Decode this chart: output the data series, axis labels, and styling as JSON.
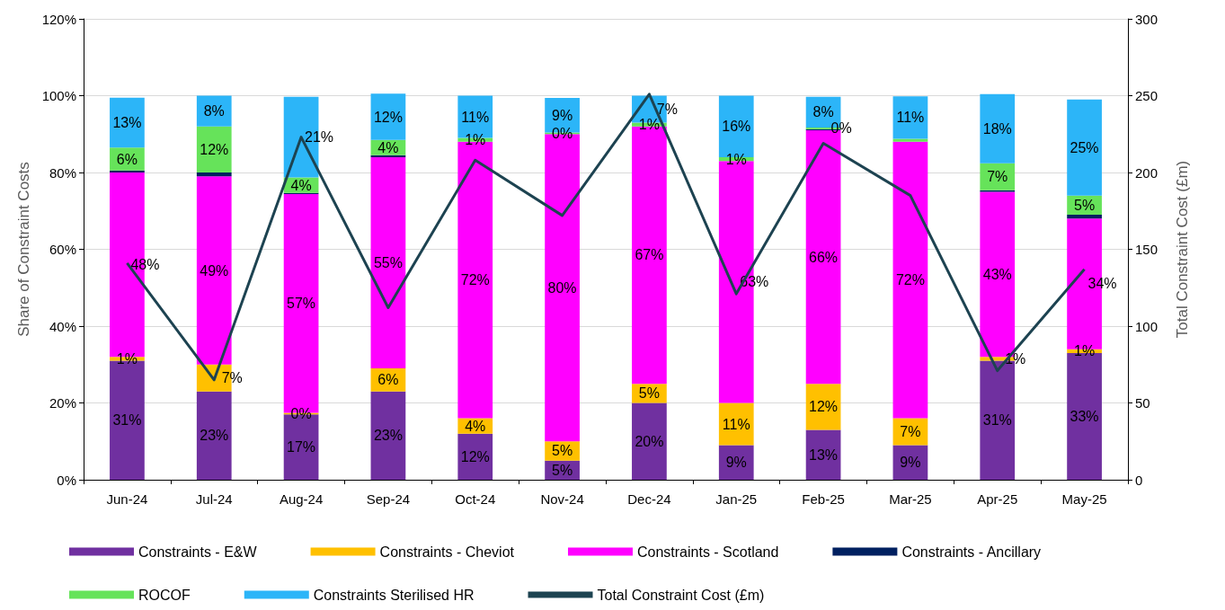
{
  "chart_data": {
    "type": "bar",
    "stacked": true,
    "ylabel": "Share of Constraint Costs",
    "y2label": "Total Constraint Cost (£m)",
    "categories": [
      "Jun-24",
      "Jul-24",
      "Aug-24",
      "Sep-24",
      "Oct-24",
      "Nov-24",
      "Dec-24",
      "Jan-25",
      "Feb-25",
      "Mar-25",
      "Apr-25",
      "May-25"
    ],
    "series": [
      {
        "name": "Constraints - E&W",
        "color": "#7030a0",
        "values": [
          31,
          23,
          17,
          23,
          12,
          5,
          20,
          9,
          13,
          9,
          31,
          33
        ],
        "value_labels": [
          "31%",
          "23%",
          "17%",
          "23%",
          "12%",
          "5%",
          "20%",
          "9%",
          "13%",
          "9%",
          "31%",
          "33%"
        ]
      },
      {
        "name": "Constraints - Cheviot",
        "color": "#ffc000",
        "values": [
          1,
          7,
          0.4,
          6,
          4,
          5,
          5,
          11,
          12,
          7,
          1,
          1
        ],
        "value_labels": [
          "1%",
          "7%",
          "0%",
          "6%",
          "4%",
          "5%",
          "5%",
          "11%",
          "12%",
          "7%",
          "1%",
          "1%"
        ]
      },
      {
        "name": "Constraints - Scotland",
        "color": "#ff00ff",
        "values": [
          48,
          49,
          57,
          55,
          72,
          80,
          67,
          63,
          66,
          72,
          43,
          34
        ],
        "value_labels": [
          "48%",
          "49%",
          "57%",
          "55%",
          "72%",
          "80%",
          "67%",
          "63%",
          "66%",
          "72%",
          "43%",
          "34%"
        ]
      },
      {
        "name": "Constraints - Ancillary",
        "color": "#002060",
        "values": [
          0.5,
          1,
          0.3,
          0.5,
          0,
          0,
          0,
          0,
          0.3,
          0,
          0.4,
          1
        ]
      },
      {
        "name": "ROCOF",
        "color": "#66e35a",
        "values": [
          6,
          12,
          4,
          4,
          1,
          0.4,
          1,
          1,
          0.4,
          0.8,
          7,
          5
        ],
        "value_labels": [
          "6%",
          "12%",
          "4%",
          "4%",
          "1%",
          "0%",
          "1%",
          "1%",
          "0%",
          null,
          "7%",
          "5%"
        ]
      },
      {
        "name": "Constraints Sterilised HR",
        "color": "#2cb5f8",
        "values": [
          13,
          8,
          21,
          12,
          11,
          9,
          7,
          16,
          8,
          11,
          18,
          25
        ],
        "value_labels": [
          "13%",
          "8%",
          "21%",
          "12%",
          "11%",
          "9%",
          "7%",
          "16%",
          "8%",
          "11%",
          "18%",
          "25%"
        ]
      },
      {
        "name": "Total Constraint Cost (£m)",
        "type": "line",
        "axis": "y2",
        "color": "#1d4351",
        "values": [
          141,
          65,
          223,
          112,
          208,
          172,
          251,
          121,
          219,
          185,
          71,
          137
        ]
      }
    ],
    "ylim": [
      0,
      120
    ],
    "yticks": [
      {
        "value": 0,
        "label": "0%"
      },
      {
        "value": 20,
        "label": "20%"
      },
      {
        "value": 40,
        "label": "40%"
      },
      {
        "value": 60,
        "label": "60%"
      },
      {
        "value": 80,
        "label": "80%"
      },
      {
        "value": 100,
        "label": "100%"
      },
      {
        "value": 120,
        "label": "120%"
      }
    ],
    "y2lim": [
      0,
      300
    ],
    "y2ticks": [
      0,
      50,
      100,
      150,
      200,
      250,
      300
    ],
    "grid": "y",
    "legend": "bottom",
    "marker": "none"
  }
}
